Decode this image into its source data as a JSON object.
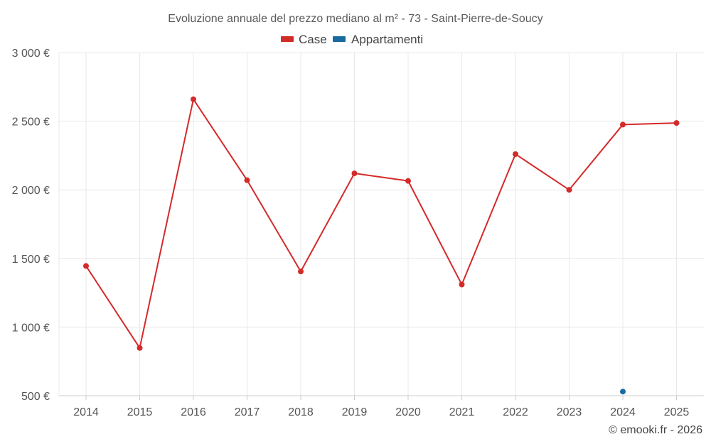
{
  "chart_data": {
    "type": "line",
    "title": "Evoluzione annuale del prezzo mediano al m² - 73 - Saint-Pierre-de-Soucy",
    "categories": [
      "2014",
      "2015",
      "2016",
      "2017",
      "2018",
      "2019",
      "2020",
      "2021",
      "2022",
      "2023",
      "2024",
      "2025"
    ],
    "ylim": [
      500,
      3000
    ],
    "yticks": [
      500,
      1000,
      1500,
      2000,
      2500,
      3000
    ],
    "ytick_labels": [
      "500 €",
      "1 000 €",
      "1 500 €",
      "2 000 €",
      "2 500 €",
      "3 000 €"
    ],
    "xlabel": "",
    "ylabel": "",
    "grid": true,
    "legend_position": "top-center",
    "series": [
      {
        "name": "Case",
        "color": "#d42a2a",
        "values": [
          1445,
          848,
          2660,
          2070,
          1405,
          2120,
          2065,
          1310,
          2260,
          2000,
          2475,
          2487
        ]
      },
      {
        "name": "Appartamenti",
        "color": "#1a6aa2",
        "values": [
          null,
          null,
          null,
          null,
          null,
          null,
          null,
          null,
          null,
          null,
          530,
          null
        ]
      }
    ]
  },
  "credit": "© emooki.fr - 2026"
}
